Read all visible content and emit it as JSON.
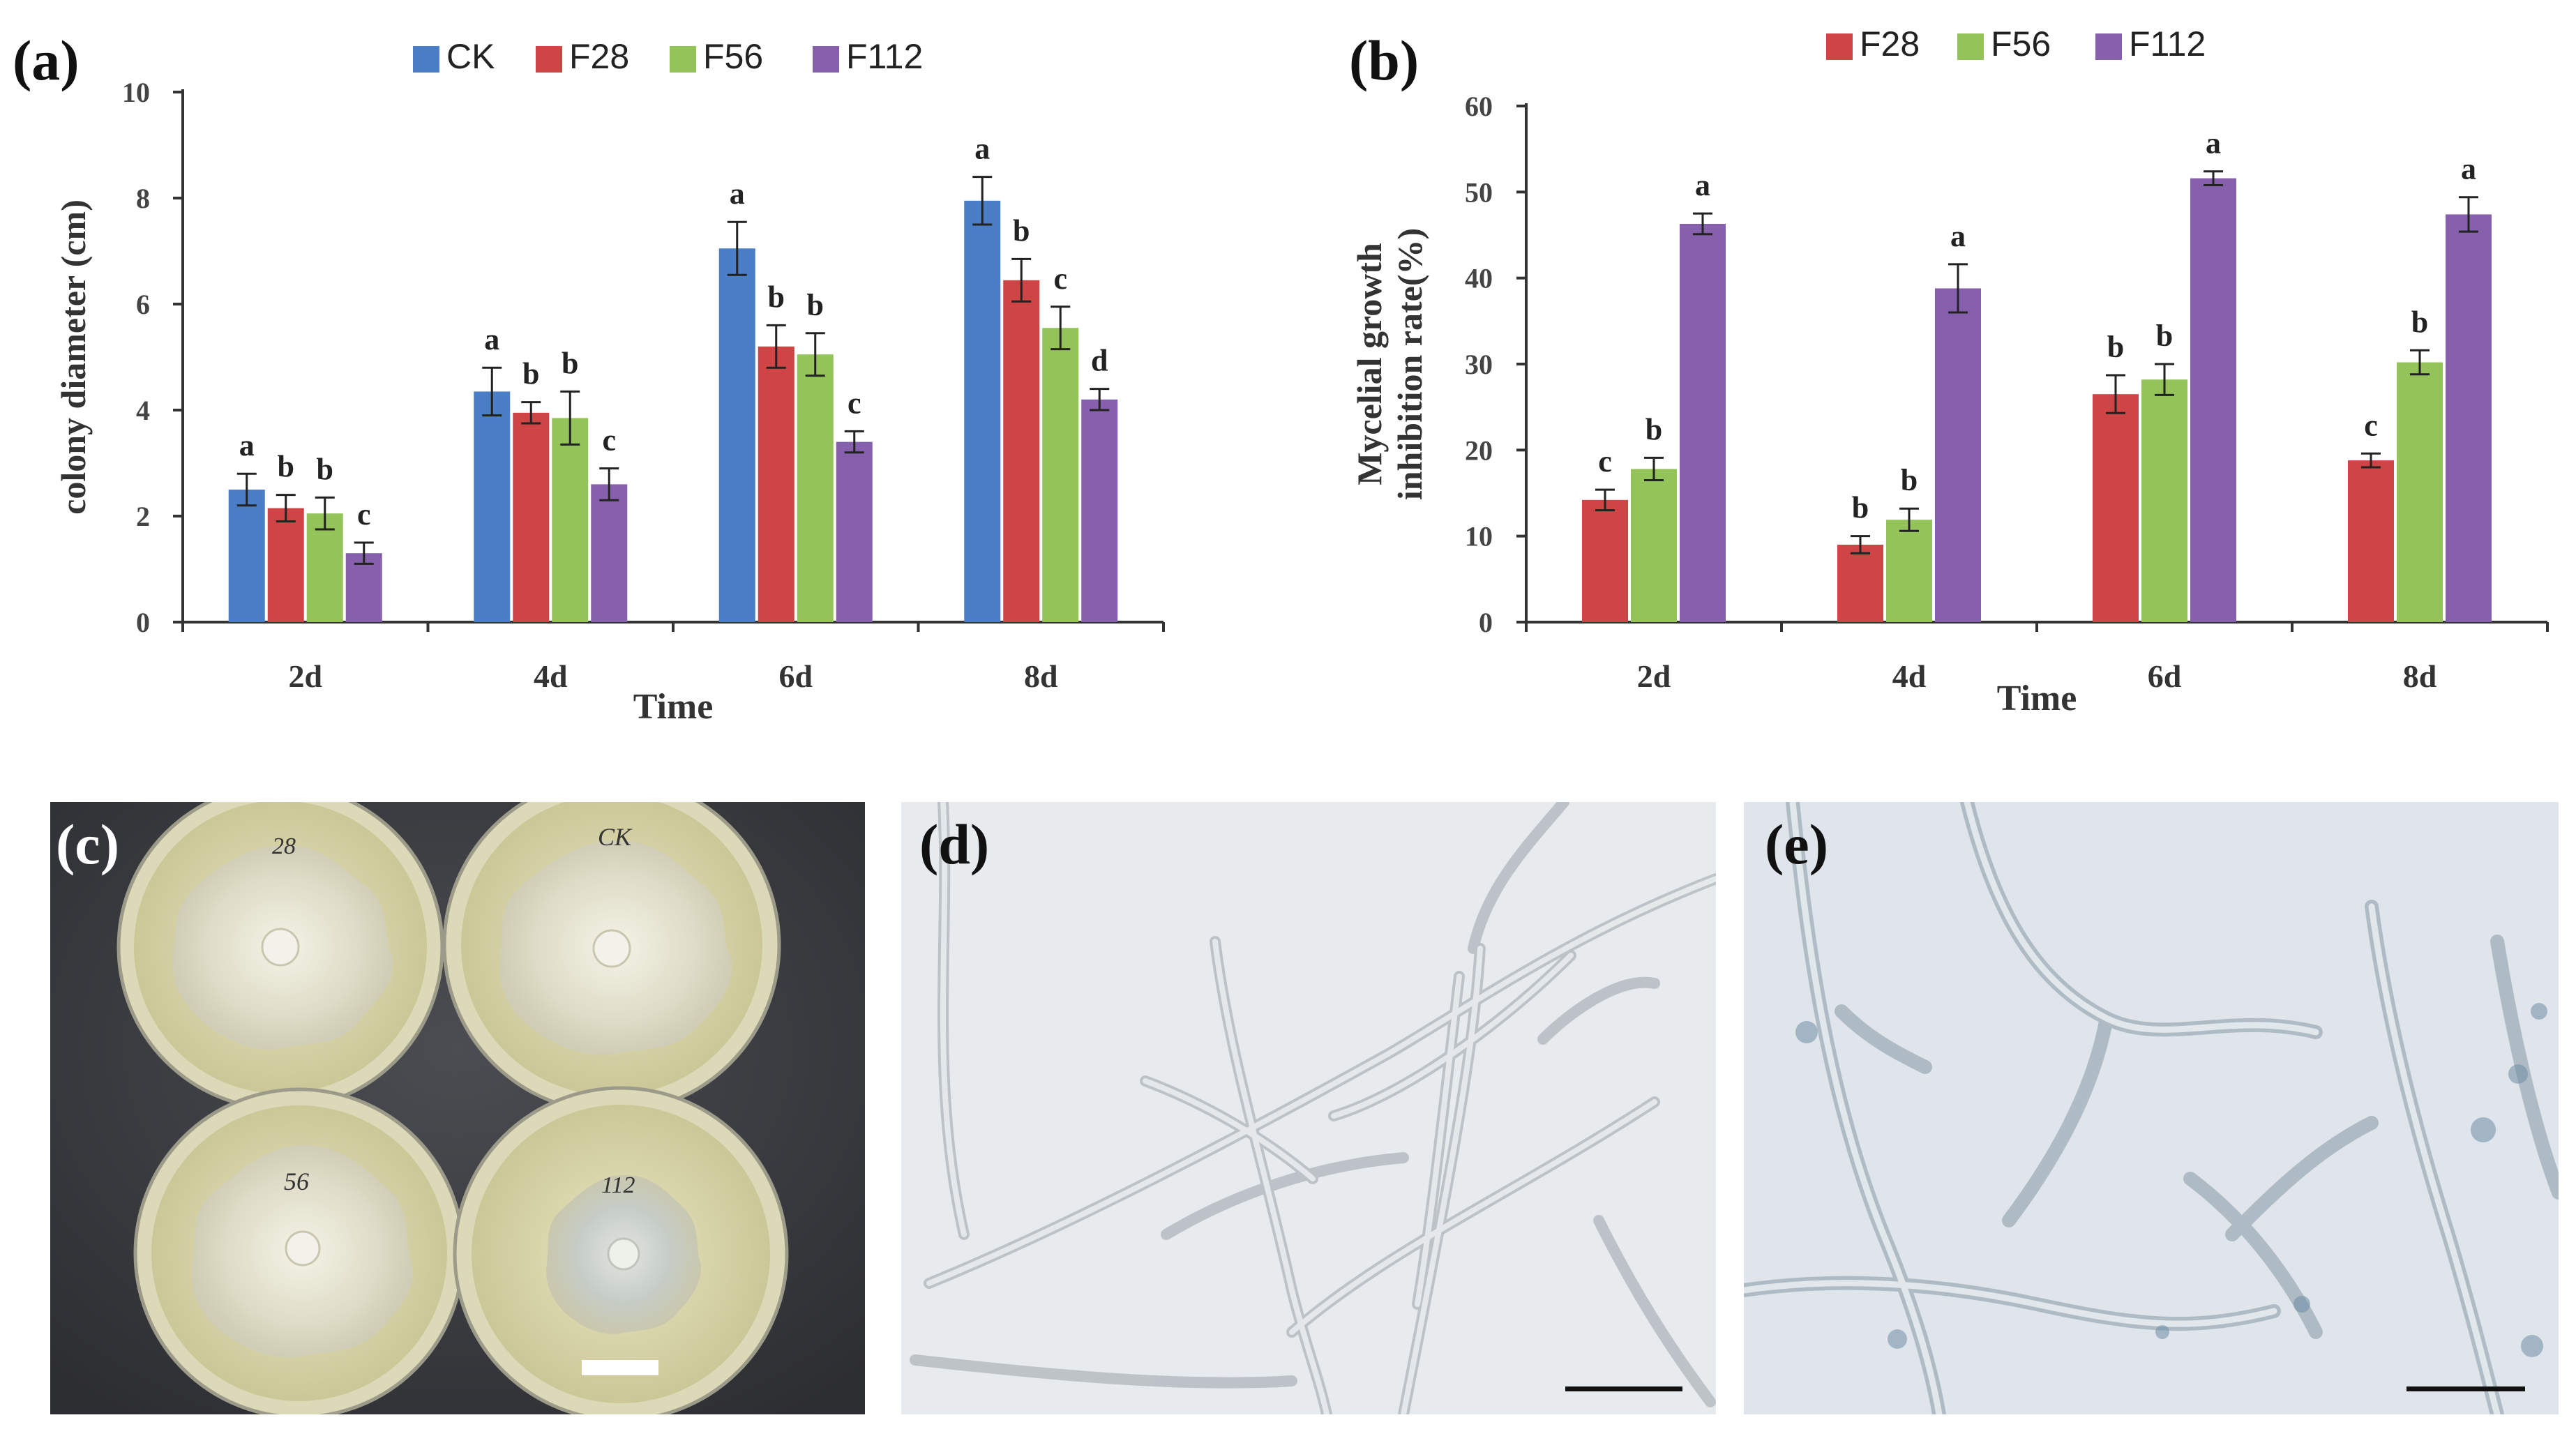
{
  "colors": {
    "CK": "#4a7ec6",
    "F28": "#cf4444",
    "F56": "#93c359",
    "F112": "#8660ad",
    "axis": "#333333"
  },
  "panels": {
    "a": {
      "label": "(a)"
    },
    "b": {
      "label": "(b)"
    },
    "c": {
      "label": "(c)",
      "plate_labels": [
        "28",
        "CK",
        "56",
        "112"
      ]
    },
    "d": {
      "label": "(d)"
    },
    "e": {
      "label": "(e)"
    }
  },
  "chart_data": [
    {
      "id": "a",
      "type": "bar",
      "title": "",
      "xlabel": "Time",
      "ylabel": "colony diameter (cm)",
      "ylim": [
        0,
        10
      ],
      "yticks": [
        0,
        2,
        4,
        6,
        8,
        10
      ],
      "categories": [
        "2d",
        "4d",
        "6d",
        "8d"
      ],
      "legend": "top",
      "series": [
        {
          "name": "CK",
          "values": [
            2.5,
            4.35,
            7.05,
            7.95
          ],
          "errors": [
            0.3,
            0.45,
            0.5,
            0.45
          ],
          "letters": [
            "a",
            "a",
            "a",
            "a"
          ]
        },
        {
          "name": "F28",
          "values": [
            2.15,
            3.95,
            5.2,
            6.45
          ],
          "errors": [
            0.25,
            0.2,
            0.4,
            0.4
          ],
          "letters": [
            "b",
            "b",
            "b",
            "b"
          ]
        },
        {
          "name": "F56",
          "values": [
            2.05,
            3.85,
            5.05,
            5.55
          ],
          "errors": [
            0.3,
            0.5,
            0.4,
            0.4
          ],
          "letters": [
            "b",
            "b",
            "b",
            "c"
          ]
        },
        {
          "name": "F112",
          "values": [
            1.3,
            2.6,
            3.4,
            4.2
          ],
          "errors": [
            0.2,
            0.3,
            0.2,
            0.2
          ],
          "letters": [
            "c",
            "c",
            "c",
            "d"
          ]
        }
      ]
    },
    {
      "id": "b",
      "type": "bar",
      "title": "",
      "xlabel": "Time",
      "ylabel": [
        "Mycelial growth",
        "inhibition rate(%)"
      ],
      "ylim": [
        0,
        60
      ],
      "yticks": [
        0,
        10,
        20,
        30,
        40,
        50,
        60
      ],
      "categories": [
        "2d",
        "4d",
        "6d",
        "8d"
      ],
      "legend": "top",
      "series": [
        {
          "name": "F28",
          "values": [
            14.2,
            9.0,
            26.5,
            18.8
          ],
          "errors": [
            1.2,
            1.0,
            2.2,
            0.8
          ],
          "letters": [
            "c",
            "b",
            "b",
            "c"
          ]
        },
        {
          "name": "F56",
          "values": [
            17.8,
            11.9,
            28.2,
            30.2
          ],
          "errors": [
            1.3,
            1.3,
            1.8,
            1.4
          ],
          "letters": [
            "b",
            "b",
            "b",
            "b"
          ]
        },
        {
          "name": "F112",
          "values": [
            46.3,
            38.8,
            51.6,
            47.4
          ],
          "errors": [
            1.2,
            2.8,
            0.8,
            2.0
          ],
          "letters": [
            "a",
            "a",
            "a",
            "a"
          ]
        }
      ]
    }
  ]
}
